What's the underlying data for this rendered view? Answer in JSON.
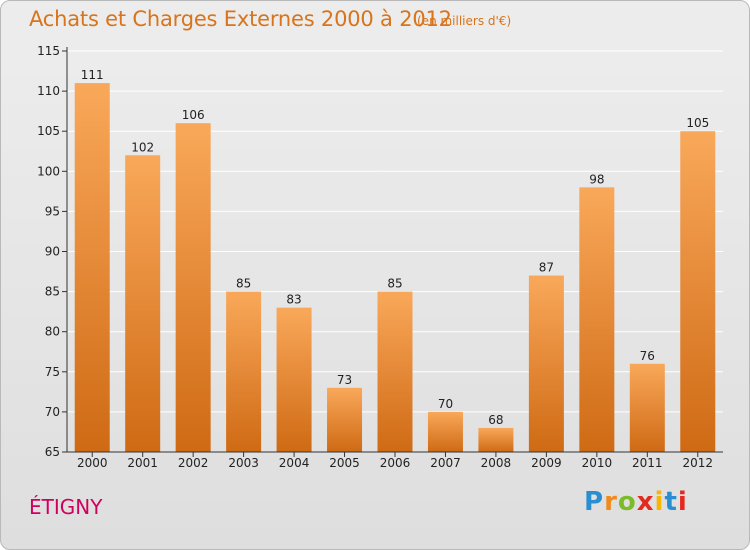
{
  "header": {
    "title": "Achats et Charges Externes 2000 à 2012",
    "unit": "(en milliers d'€)"
  },
  "footer": {
    "commune": "ÉTIGNY",
    "logo": {
      "text": "Proxiti",
      "letter_colors": [
        "#2a8fd0",
        "#f08a1c",
        "#7cbc2a",
        "#e5291e",
        "#f7b500",
        "#2a8fd0",
        "#e5291e"
      ]
    }
  },
  "colors": {
    "bar_top": "#f9a85a",
    "bar_bottom": "#cf6a14",
    "grid": "#ffffff",
    "title": "#d8741c",
    "commune": "#d1005f"
  },
  "chart_data": {
    "type": "bar",
    "title": "Achats et Charges Externes 2000 à 2012",
    "subtitle": "(en milliers d'€)",
    "categories": [
      "2000",
      "2001",
      "2002",
      "2003",
      "2004",
      "2005",
      "2006",
      "2007",
      "2008",
      "2009",
      "2010",
      "2011",
      "2012"
    ],
    "values": [
      111,
      102,
      106,
      85,
      83,
      73,
      85,
      70,
      68,
      87,
      98,
      76,
      105
    ],
    "ylim": [
      65,
      115
    ],
    "yticks": [
      65,
      70,
      75,
      80,
      85,
      90,
      95,
      100,
      105,
      110,
      115
    ],
    "grid": true,
    "data_labels": true
  }
}
